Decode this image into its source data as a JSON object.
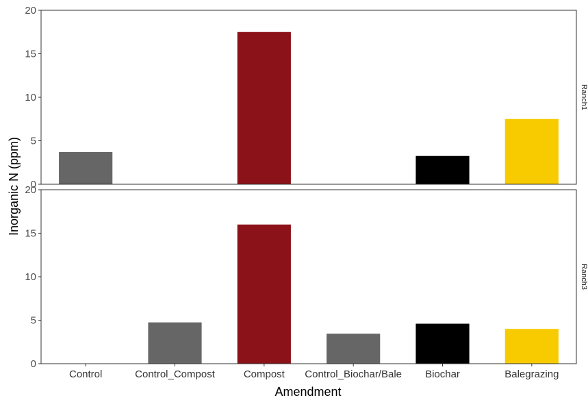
{
  "chart_data": {
    "type": "bar",
    "xlabel": "Amendment",
    "ylabel": "Inorganic N (ppm)",
    "categories": [
      "Control",
      "Control_Compost",
      "Compost",
      "Control_Biochar/Bale",
      "Biochar",
      "Balegrazing"
    ],
    "category_colors": [
      "#666666",
      "#666666",
      "#8b1219",
      "#666666",
      "#000000",
      "#f8cb00"
    ],
    "ylim": [
      0,
      20
    ],
    "yticks": [
      "0",
      "5",
      "10",
      "15",
      "20"
    ],
    "grid": false,
    "facets": [
      {
        "label": "Ranch1",
        "values": [
          3.7,
          null,
          17.5,
          null,
          3.25,
          7.5
        ]
      },
      {
        "label": "Ranch3",
        "values": [
          null,
          4.75,
          16.0,
          3.45,
          4.6,
          4.0
        ]
      }
    ]
  }
}
